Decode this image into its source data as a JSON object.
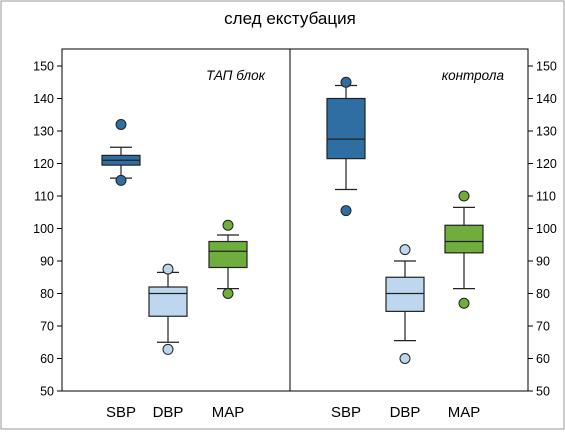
{
  "chart_data": {
    "type": "box",
    "title": "след екстубация",
    "ylim": [
      50,
      150
    ],
    "yticks": [
      50,
      60,
      70,
      80,
      90,
      100,
      110,
      120,
      130,
      140,
      150
    ],
    "categories": [
      "SBP",
      "DBP",
      "MAP"
    ],
    "colors": {
      "SBP": "#2e6ea3",
      "DBP": "#bcd7ee",
      "MAP": "#6fae3d",
      "line": "#222222"
    },
    "panels": [
      {
        "label": "ТАП блок",
        "boxes": [
          {
            "category": "SBP",
            "whisker_low": 115.5,
            "q1": 119.5,
            "median": 121,
            "q3": 122.5,
            "whisker_high": 125,
            "outliers": [
              132,
              114.8
            ]
          },
          {
            "category": "DBP",
            "whisker_low": 65,
            "q1": 73,
            "median": 80,
            "q3": 82,
            "whisker_high": 86.5,
            "outliers": [
              87.5,
              62.8
            ]
          },
          {
            "category": "MAP",
            "whisker_low": 81.5,
            "q1": 88,
            "median": 93,
            "q3": 96,
            "whisker_high": 98,
            "outliers": [
              101,
              80
            ]
          }
        ]
      },
      {
        "label": "контрола",
        "boxes": [
          {
            "category": "SBP",
            "whisker_low": 112,
            "q1": 121.5,
            "median": 127.5,
            "q3": 140,
            "whisker_high": 144,
            "outliers": [
              145,
              105.5
            ]
          },
          {
            "category": "DBP",
            "whisker_low": 65.5,
            "q1": 74.5,
            "median": 80,
            "q3": 85,
            "whisker_high": 90,
            "outliers": [
              93.5,
              60
            ]
          },
          {
            "category": "MAP",
            "whisker_low": 81.5,
            "q1": 92.5,
            "median": 96,
            "q3": 101,
            "whisker_high": 106.5,
            "outliers": [
              110,
              77
            ]
          }
        ]
      }
    ]
  }
}
